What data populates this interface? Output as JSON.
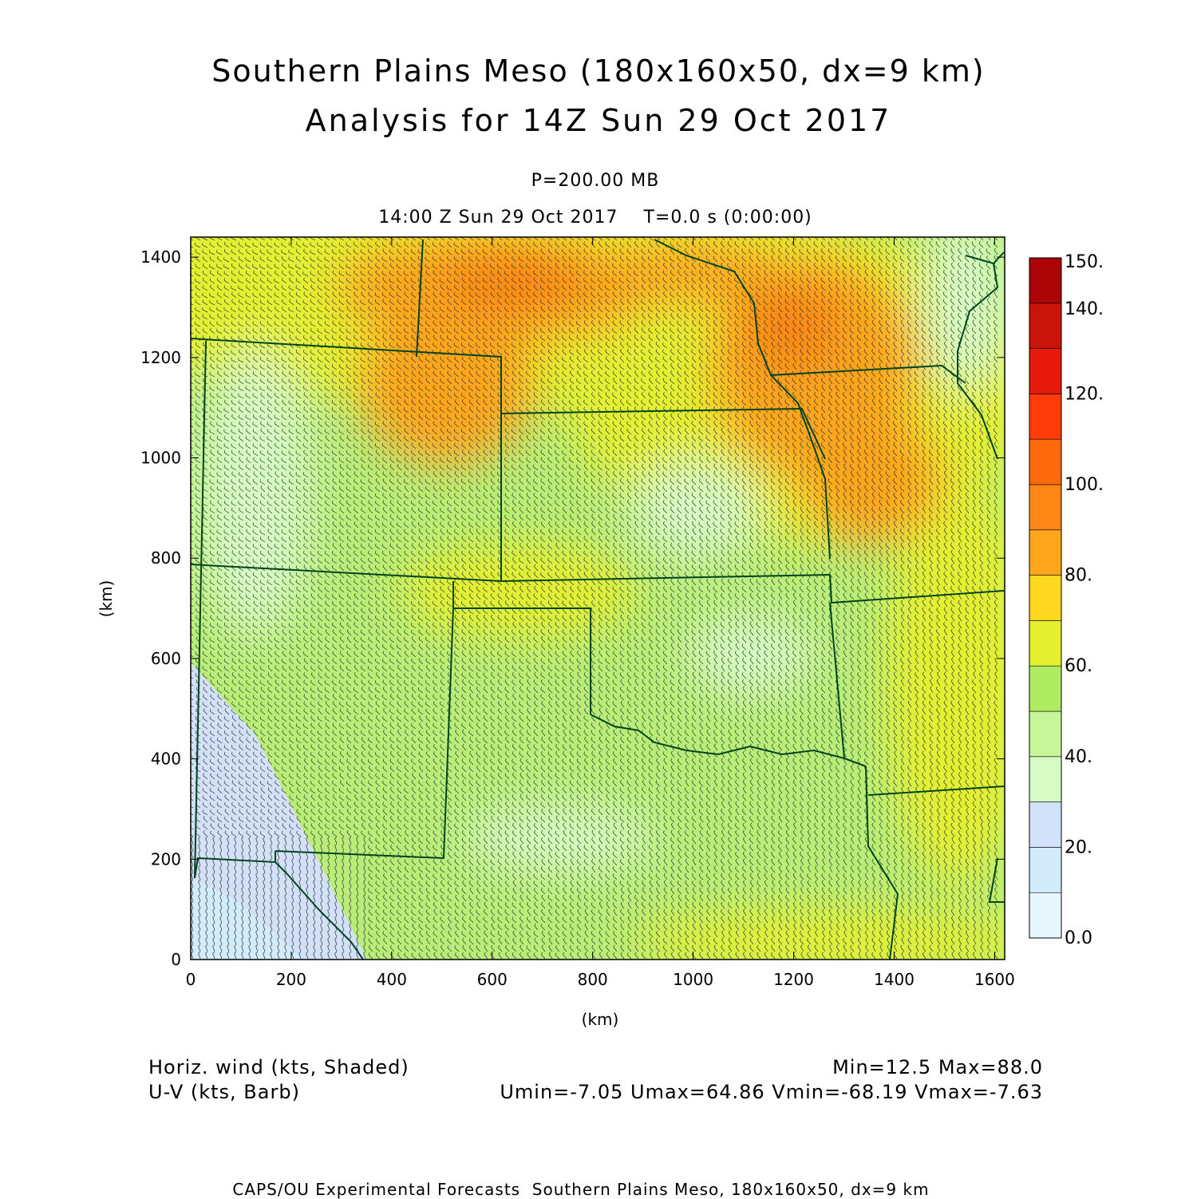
{
  "title_line1": "Southern Plains Meso (180x160x50, dx=9 km)",
  "title_line2": "Analysis for 14Z Sun 29 Oct 2017",
  "level_label": "P=200.00 MB",
  "time_label": "14:00 Z Sun 29 Oct 2017    T=0.0 s (0:00:00)",
  "footer": {
    "field1": "Horiz. wind (kts, Shaded)",
    "field2": "U-V (kts, Barb)",
    "stats1": "Min=12.5 Max=88.0",
    "stats2": "Umin=-7.05 Umax=64.86 Vmin=-68.19 Vmax=-7.63",
    "credit": "CAPS/OU Experimental Forecasts  Southern Plains Meso, 180x160x50, dx=9 km"
  },
  "map": {
    "x_axis_label": "(km)",
    "y_axis_label": "(km)",
    "x_range": [
      0,
      1620
    ],
    "y_range": [
      0,
      1440
    ],
    "x_ticks": [
      0,
      200,
      400,
      600,
      800,
      1000,
      1200,
      1400,
      1600
    ],
    "y_ticks": [
      0,
      200,
      400,
      600,
      800,
      1000,
      1200,
      1400
    ],
    "colorbar": {
      "levels": [
        0,
        10,
        20,
        30,
        40,
        50,
        60,
        70,
        80,
        90,
        100,
        110,
        120,
        130,
        140,
        150
      ],
      "labels": [
        "0.0",
        "20.",
        "40.",
        "60.",
        "80.",
        "100.",
        "120.",
        "140.",
        "150."
      ],
      "colors": [
        "#e6f6fc",
        "#d3ecfb",
        "#d3e1f8",
        "#d6fbc4",
        "#c6f59a",
        "#b0ec61",
        "#e3f030",
        "#ffd620",
        "#ffa61c",
        "#ff8716",
        "#ff6a0e",
        "#ff3c0a",
        "#e61a0a",
        "#c81409",
        "#ac0508"
      ]
    },
    "colors": {
      "background_field": "#b8ee78",
      "border": "#00441e",
      "barb": "#333333"
    }
  }
}
